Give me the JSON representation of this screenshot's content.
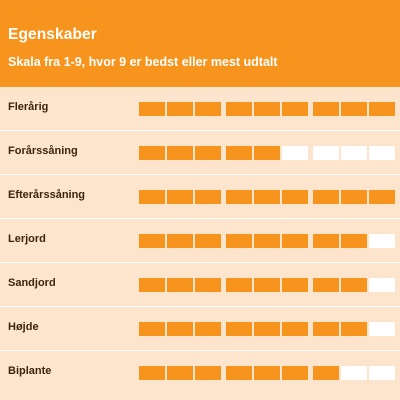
{
  "header": {
    "title": "Egenskaber",
    "subtitle": "Skala fra 1-9, hvor 9 er bedst eller mest udtalt"
  },
  "scale_max": 9,
  "colors": {
    "accent": "#f7941d",
    "row_background": "#fde4cc",
    "empty_segment": "#ffffff",
    "label_text": "#3b2410"
  },
  "properties": [
    {
      "label": "Flerårig",
      "value": 9
    },
    {
      "label": "Forårssåning",
      "value": 5
    },
    {
      "label": "Efterårssåning",
      "value": 9
    },
    {
      "label": "Lerjord",
      "value": 8
    },
    {
      "label": "Sandjord",
      "value": 8
    },
    {
      "label": "Højde",
      "value": 8
    },
    {
      "label": "Biplante",
      "value": 7
    }
  ]
}
